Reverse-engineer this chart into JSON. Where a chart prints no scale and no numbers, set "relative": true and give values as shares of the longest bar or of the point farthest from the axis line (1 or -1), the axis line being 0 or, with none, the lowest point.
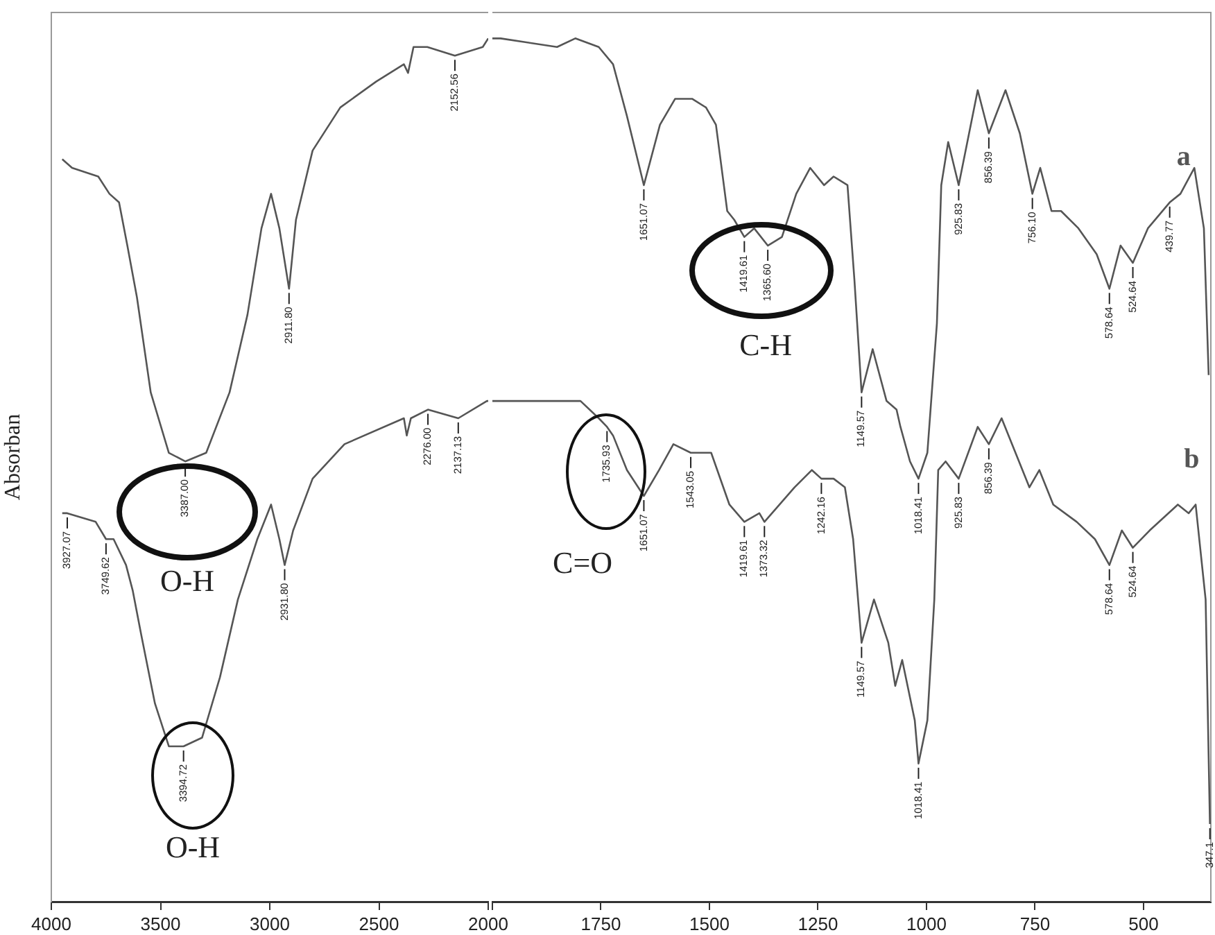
{
  "chart_data": [
    {
      "type": "line",
      "relative": true,
      "ylabel": "Absorban",
      "xlim": [
        4000,
        2000
      ],
      "xticks": [
        4000,
        3500,
        3000,
        2500,
        2000
      ],
      "series": [
        {
          "color": "#555555",
          "x": [
            3950,
            3905,
            3785,
            3734,
            3690,
            3652,
            3608,
            3545,
            3462,
            3387.0,
            3291,
            3184,
            3102,
            3038,
            2994,
            2956,
            2911.8,
            2880,
            2804,
            2677,
            2513,
            2386,
            2367,
            2342,
            2279,
            2152.56,
            2025,
            2000
          ],
          "values": [
            0.86,
            0.85,
            0.84,
            0.82,
            0.81,
            0.76,
            0.7,
            0.59,
            0.52,
            0.51,
            0.52,
            0.59,
            0.68,
            0.78,
            0.82,
            0.78,
            0.71,
            0.79,
            0.87,
            0.92,
            0.95,
            0.97,
            0.96,
            0.99,
            0.99,
            0.98,
            0.99,
            1.0
          ]
        },
        {
          "color": "#555555",
          "x": [
            3950,
            3927.07,
            3797,
            3749.62,
            3715,
            3658,
            3627,
            3589,
            3526,
            3462,
            3394.72,
            3310,
            3228,
            3146,
            3057,
            2994,
            2956,
            2931.8,
            2893,
            2804,
            2658,
            2386,
            2373,
            2354,
            2276.0,
            2137.13,
            2006,
            2000
          ],
          "values": [
            0.45,
            0.45,
            0.44,
            0.42,
            0.42,
            0.39,
            0.36,
            0.31,
            0.23,
            0.18,
            0.18,
            0.19,
            0.26,
            0.35,
            0.42,
            0.46,
            0.42,
            0.39,
            0.43,
            0.49,
            0.53,
            0.56,
            0.54,
            0.56,
            0.57,
            0.56,
            0.58,
            0.58
          ]
        }
      ],
      "annotations": [
        "O-H",
        "O-H",
        {
          "text": "3387.00",
          "x": 3387.0,
          "y": 0.51
        },
        {
          "text": "2911.80",
          "x": 2911.8,
          "y": 0.71
        },
        {
          "text": "2152.56",
          "x": 2152.56,
          "y": 0.98
        },
        {
          "text": "3927.07",
          "x": 3927.07,
          "y": 0.45
        },
        {
          "text": "3749.62",
          "x": 3749.62,
          "y": 0.42
        },
        {
          "text": "3394.72",
          "x": 3394.72,
          "y": 0.18
        },
        {
          "text": "2931.80",
          "x": 2931.8,
          "y": 0.39
        },
        {
          "text": "2276.00",
          "x": 2276.0,
          "y": 0.57
        },
        {
          "text": "2137.13",
          "x": 2137.13,
          "y": 0.56
        }
      ]
    },
    {
      "type": "line",
      "relative": true,
      "xlim": [
        2000,
        345
      ],
      "xticks": [
        {
          "value": 2000,
          "label": null
        },
        1750,
        1500,
        1250,
        1000,
        750,
        500
      ],
      "series": [
        {
          "name": "a",
          "color": "#555555",
          "x": [
            2000,
            1981,
            1851,
            1809,
            1755,
            1722,
            1690,
            1651.07,
            1614,
            1579,
            1540,
            1508,
            1485,
            1459,
            1443,
            1419.61,
            1397,
            1365.6,
            1333,
            1300,
            1268,
            1236,
            1214,
            1182,
            1166,
            1149.57,
            1124,
            1092,
            1069,
            1060,
            1038,
            1018.41,
            998,
            976,
            966,
            950,
            925.83,
            882,
            856.39,
            818,
            785,
            756.1,
            738,
            712,
            690,
            650,
            608,
            578.64,
            553,
            524.64,
            490,
            439.77,
            415,
            383,
            361,
            350
          ],
          "values": [
            1.0,
            1.0,
            0.99,
            1.0,
            0.99,
            0.97,
            0.91,
            0.83,
            0.9,
            0.93,
            0.93,
            0.92,
            0.9,
            0.8,
            0.79,
            0.77,
            0.78,
            0.76,
            0.77,
            0.82,
            0.85,
            0.83,
            0.84,
            0.83,
            0.72,
            0.59,
            0.64,
            0.58,
            0.57,
            0.55,
            0.51,
            0.49,
            0.52,
            0.67,
            0.83,
            0.88,
            0.83,
            0.94,
            0.89,
            0.94,
            0.89,
            0.82,
            0.85,
            0.8,
            0.8,
            0.78,
            0.75,
            0.71,
            0.76,
            0.74,
            0.78,
            0.81,
            0.82,
            0.85,
            0.78,
            0.61
          ]
        },
        {
          "name": "b",
          "color": "#555555",
          "x": [
            2000,
            1958,
            1851,
            1797,
            1755,
            1735.93,
            1722,
            1690,
            1651.07,
            1616,
            1583,
            1543.05,
            1496,
            1454,
            1419.61,
            1385,
            1373.32,
            1304,
            1264,
            1242.16,
            1214,
            1188,
            1169,
            1149.57,
            1121,
            1088,
            1072,
            1056,
            1027,
            1018.41,
            998,
            982,
            973,
            956,
            925.83,
            882,
            856.39,
            827,
            763,
            740,
            708,
            654,
            612,
            578.64,
            550,
            524.64,
            486,
            421,
            396,
            380,
            357,
            347.1
          ],
          "values": [
            0.58,
            0.58,
            0.58,
            0.58,
            0.56,
            0.55,
            0.54,
            0.5,
            0.47,
            0.5,
            0.53,
            0.52,
            0.52,
            0.46,
            0.44,
            0.45,
            0.44,
            0.48,
            0.5,
            0.49,
            0.49,
            0.48,
            0.42,
            0.3,
            0.35,
            0.3,
            0.25,
            0.28,
            0.21,
            0.16,
            0.21,
            0.35,
            0.5,
            0.51,
            0.49,
            0.55,
            0.53,
            0.56,
            0.48,
            0.5,
            0.46,
            0.44,
            0.42,
            0.39,
            0.43,
            0.41,
            0.43,
            0.46,
            0.45,
            0.46,
            0.35,
            0.09
          ]
        }
      ],
      "annotations": [
        "C=O",
        "C-H",
        {
          "text": "1651.07",
          "x": 1651.07,
          "y": 0.83
        },
        {
          "text": "1419.61",
          "x": 1419.61,
          "y": 0.77
        },
        {
          "text": "1365.60",
          "x": 1365.6,
          "y": 0.76
        },
        {
          "text": "1149.57",
          "x": 1149.57,
          "y": 0.59
        },
        {
          "text": "1018.41",
          "x": 1018.41,
          "y": 0.49
        },
        {
          "text": "925.83",
          "x": 925.83,
          "y": 0.83
        },
        {
          "text": "856.39",
          "x": 856.39,
          "y": 0.89
        },
        {
          "text": "756.10",
          "x": 756.1,
          "y": 0.82
        },
        {
          "text": "578.64",
          "x": 578.64,
          "y": 0.71
        },
        {
          "text": "524.64",
          "x": 524.64,
          "y": 0.74
        },
        {
          "text": "439.77",
          "x": 439.77,
          "y": 0.81
        },
        {
          "text": "1735.93",
          "x": 1735.93,
          "y": 0.55
        },
        {
          "text": "1651.07",
          "x": 1651.07,
          "y": 0.47
        },
        {
          "text": "1543.05",
          "x": 1543.05,
          "y": 0.52
        },
        {
          "text": "1419.61",
          "x": 1419.61,
          "y": 0.44
        },
        {
          "text": "1373.32",
          "x": 1373.32,
          "y": 0.44
        },
        {
          "text": "1242.16",
          "x": 1242.16,
          "y": 0.49
        },
        {
          "text": "1149.57",
          "x": 1149.57,
          "y": 0.3
        },
        {
          "text": "1018.41",
          "x": 1018.41,
          "y": 0.16
        },
        {
          "text": "925.83",
          "x": 925.83,
          "y": 0.49
        },
        {
          "text": "856.39",
          "x": 856.39,
          "y": 0.53
        },
        {
          "text": "578.64",
          "x": 578.64,
          "y": 0.39
        },
        {
          "text": "524.64",
          "x": 524.64,
          "y": 0.41
        },
        {
          "text": "347.1",
          "x": 347.1,
          "y": 0.09
        }
      ]
    }
  ]
}
